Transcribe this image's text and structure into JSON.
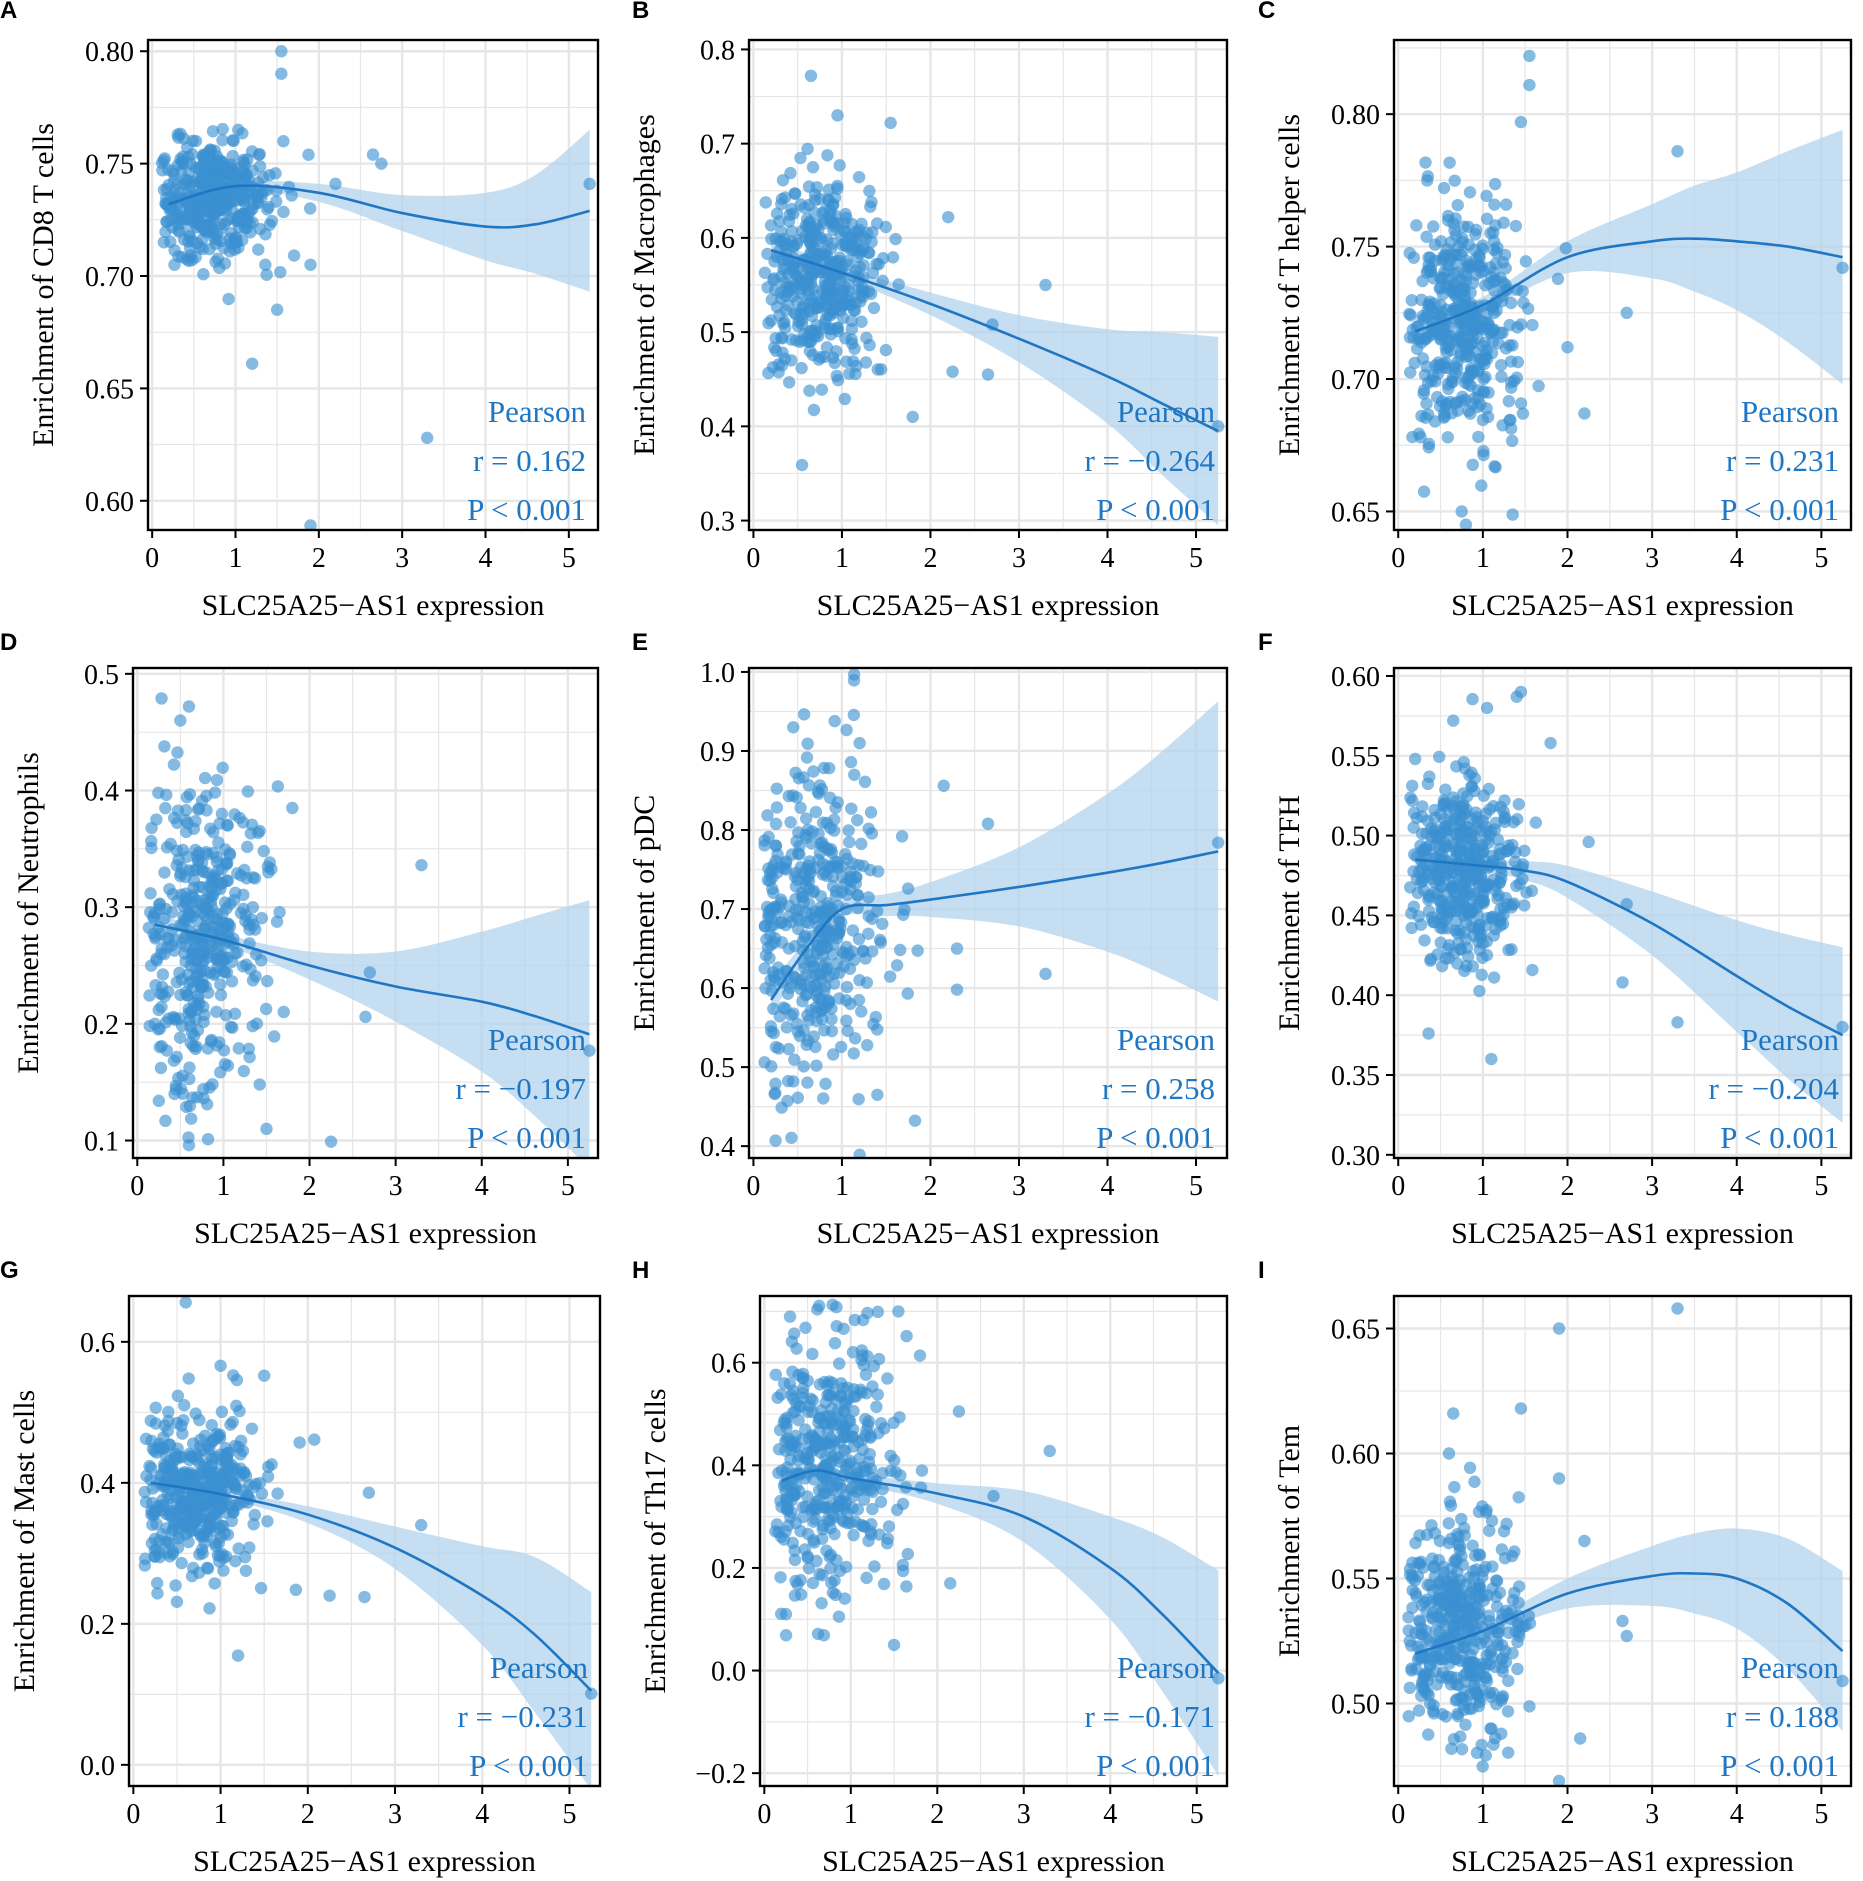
{
  "figure": {
    "x_tick_labels": [
      "0",
      "1",
      "2",
      "3",
      "4",
      "5"
    ],
    "stat_method": "Pearson",
    "point_color": "#3a8fd0",
    "line_color": "#1f77c4",
    "band_color": "#b3d3ee",
    "text_color": "#1f77c4"
  },
  "chart_data": [
    {
      "type": "scatter",
      "panel": "A",
      "xlabel": "SLC25A25−AS1 expression",
      "ylabel": "Enrichment of CD8 T cells",
      "xlim": [
        -0.05,
        5.35
      ],
      "ylim": [
        0.587,
        0.805
      ],
      "yticks": [
        0.6,
        0.65,
        0.7,
        0.75,
        0.8
      ],
      "ytick_labels": [
        "0.60",
        "0.65",
        "0.70",
        "0.75",
        "0.80"
      ],
      "cloud": {
        "center": [
          0.75,
          0.735
        ],
        "spread": [
          0.35,
          0.013
        ]
      },
      "outliers": [
        [
          1.55,
          0.8
        ],
        [
          1.55,
          0.79
        ],
        [
          2.2,
          0.741
        ],
        [
          2.65,
          0.754
        ],
        [
          2.75,
          0.75
        ],
        [
          1.2,
          0.661
        ],
        [
          1.5,
          0.685
        ],
        [
          1.9,
          0.705
        ],
        [
          3.3,
          0.628
        ],
        [
          1.9,
          0.589
        ],
        [
          5.25,
          0.741
        ]
      ],
      "fit": {
        "x": [
          0.2,
          1.0,
          2.0,
          3.0,
          4.0,
          4.6,
          5.25
        ],
        "y": [
          0.732,
          0.74,
          0.737,
          0.728,
          0.722,
          0.723,
          0.729
        ]
      },
      "band_halfwidth": [
        0.004,
        0.002,
        0.004,
        0.008,
        0.015,
        0.022,
        0.036
      ],
      "r_text": "r = 0.162",
      "p_text": "P < 0.001"
    },
    {
      "type": "scatter",
      "panel": "B",
      "xlabel": "SLC25A25−AS1 expression",
      "ylabel": "Enrichment of Macrophages",
      "xlim": [
        -0.05,
        5.35
      ],
      "ylim": [
        0.29,
        0.81
      ],
      "yticks": [
        0.3,
        0.4,
        0.5,
        0.6,
        0.7,
        0.8
      ],
      "ytick_labels": [
        "0.3",
        "0.4",
        "0.5",
        "0.6",
        "0.7",
        "0.8"
      ],
      "cloud": {
        "center": [
          0.75,
          0.56
        ],
        "spread": [
          0.35,
          0.05
        ]
      },
      "outliers": [
        [
          0.65,
          0.772
        ],
        [
          0.95,
          0.73
        ],
        [
          1.55,
          0.722
        ],
        [
          2.2,
          0.622
        ],
        [
          3.3,
          0.55
        ],
        [
          2.7,
          0.508
        ],
        [
          1.8,
          0.41
        ],
        [
          2.65,
          0.455
        ],
        [
          5.25,
          0.4
        ],
        [
          2.25,
          0.458
        ]
      ],
      "fit": {
        "x": [
          0.2,
          1.0,
          2.0,
          3.0,
          4.0,
          4.6,
          5.25
        ],
        "y": [
          0.587,
          0.563,
          0.53,
          0.493,
          0.453,
          0.425,
          0.395
        ]
      },
      "band_halfwidth": [
        0.012,
        0.006,
        0.012,
        0.025,
        0.05,
        0.075,
        0.1
      ],
      "r_text": "r = −0.264",
      "p_text": "P < 0.001"
    },
    {
      "type": "scatter",
      "panel": "C",
      "xlabel": "SLC25A25−AS1 expression",
      "ylabel": "Enrichment of T helper cells",
      "xlim": [
        -0.05,
        5.35
      ],
      "ylim": [
        0.643,
        0.828
      ],
      "yticks": [
        0.65,
        0.7,
        0.75,
        0.8
      ],
      "ytick_labels": [
        "0.65",
        "0.70",
        "0.75",
        "0.80"
      ],
      "cloud": {
        "center": [
          0.75,
          0.722
        ],
        "spread": [
          0.35,
          0.022
        ]
      },
      "outliers": [
        [
          1.55,
          0.822
        ],
        [
          1.55,
          0.811
        ],
        [
          1.45,
          0.797
        ],
        [
          3.3,
          0.786
        ],
        [
          5.25,
          0.742
        ],
        [
          2.7,
          0.725
        ],
        [
          2.2,
          0.687
        ],
        [
          0.8,
          0.645
        ],
        [
          0.75,
          0.65
        ],
        [
          2.0,
          0.712
        ]
      ],
      "fit": {
        "x": [
          0.2,
          1.0,
          2.0,
          3.0,
          3.5,
          4.0,
          4.6,
          5.25
        ],
        "y": [
          0.718,
          0.728,
          0.746,
          0.752,
          0.753,
          0.752,
          0.75,
          0.746
        ]
      },
      "band_halfwidth": [
        0.006,
        0.003,
        0.006,
        0.014,
        0.02,
        0.026,
        0.036,
        0.048
      ],
      "r_text": "r = 0.231",
      "p_text": "P < 0.001"
    },
    {
      "type": "scatter",
      "panel": "D",
      "xlabel": "SLC25A25−AS1 expression",
      "ylabel": "Enrichment of Neutrophils",
      "xlim": [
        -0.05,
        5.35
      ],
      "ylim": [
        0.085,
        0.505
      ],
      "yticks": [
        0.1,
        0.2,
        0.3,
        0.4,
        0.5
      ],
      "ytick_labels": [
        "0.1",
        "0.2",
        "0.3",
        "0.4",
        "0.5"
      ],
      "cloud": {
        "center": [
          0.75,
          0.275
        ],
        "spread": [
          0.35,
          0.065
        ]
      },
      "outliers": [
        [
          0.6,
          0.472
        ],
        [
          0.5,
          0.46
        ],
        [
          0.25,
          0.134
        ],
        [
          0.6,
          0.096
        ],
        [
          1.5,
          0.11
        ],
        [
          3.3,
          0.336
        ],
        [
          2.7,
          0.244
        ],
        [
          2.65,
          0.206
        ],
        [
          2.25,
          0.099
        ],
        [
          5.25,
          0.177
        ],
        [
          1.8,
          0.385
        ]
      ],
      "fit": {
        "x": [
          0.2,
          1.0,
          2.0,
          3.0,
          4.0,
          4.6,
          5.25
        ],
        "y": [
          0.285,
          0.272,
          0.25,
          0.232,
          0.219,
          0.207,
          0.191
        ]
      },
      "band_halfwidth": [
        0.01,
        0.005,
        0.012,
        0.03,
        0.06,
        0.085,
        0.115
      ],
      "r_text": "r = −0.197",
      "p_text": "P < 0.001"
    },
    {
      "type": "scatter",
      "panel": "E",
      "xlabel": "SLC25A25−AS1 expression",
      "ylabel": "Enrichment of pDC",
      "xlim": [
        -0.05,
        5.35
      ],
      "ylim": [
        0.385,
        1.005
      ],
      "yticks": [
        0.4,
        0.5,
        0.6,
        0.7,
        0.8,
        0.9,
        1.0
      ],
      "ytick_labels": [
        "0.4",
        "0.5",
        "0.6",
        "0.7",
        "0.8",
        "0.9",
        "1.0"
      ],
      "cloud": {
        "center": [
          0.75,
          0.67
        ],
        "spread": [
          0.38,
          0.11
        ]
      },
      "outliers": [
        [
          0.45,
          0.93
        ],
        [
          1.2,
          0.91
        ],
        [
          2.15,
          0.856
        ],
        [
          2.65,
          0.808
        ],
        [
          2.3,
          0.65
        ],
        [
          2.3,
          0.598
        ],
        [
          3.3,
          0.618
        ],
        [
          1.4,
          0.465
        ],
        [
          1.2,
          0.389
        ],
        [
          0.25,
          0.407
        ],
        [
          5.25,
          0.784
        ]
      ],
      "fit": {
        "x": [
          0.2,
          0.6,
          1.0,
          1.5,
          2.0,
          3.0,
          4.0,
          4.6,
          5.25
        ],
        "y": [
          0.585,
          0.65,
          0.7,
          0.705,
          0.712,
          0.728,
          0.746,
          0.758,
          0.773
        ]
      },
      "band_halfwidth": [
        0.02,
        0.012,
        0.01,
        0.014,
        0.022,
        0.05,
        0.1,
        0.14,
        0.19
      ],
      "r_text": "r = 0.258",
      "p_text": "P < 0.001"
    },
    {
      "type": "scatter",
      "panel": "F",
      "xlabel": "SLC25A25−AS1 expression",
      "ylabel": "Enrichment of TFH",
      "xlim": [
        -0.05,
        5.35
      ],
      "ylim": [
        0.298,
        0.605
      ],
      "yticks": [
        0.3,
        0.35,
        0.4,
        0.45,
        0.5,
        0.55,
        0.6
      ],
      "ytick_labels": [
        "0.30",
        "0.35",
        "0.40",
        "0.45",
        "0.50",
        "0.55",
        "0.60"
      ],
      "cloud": {
        "center": [
          0.75,
          0.478
        ],
        "spread": [
          0.35,
          0.03
        ]
      },
      "outliers": [
        [
          1.45,
          0.59
        ],
        [
          1.4,
          0.587
        ],
        [
          1.05,
          0.58
        ],
        [
          0.65,
          0.572
        ],
        [
          1.8,
          0.558
        ],
        [
          0.2,
          0.548
        ],
        [
          2.25,
          0.496
        ],
        [
          2.7,
          0.457
        ],
        [
          2.65,
          0.408
        ],
        [
          3.3,
          0.383
        ],
        [
          1.1,
          0.36
        ],
        [
          5.25,
          0.38
        ]
      ],
      "fit": {
        "x": [
          0.2,
          1.0,
          1.5,
          2.0,
          3.0,
          4.0,
          4.6,
          5.25
        ],
        "y": [
          0.485,
          0.481,
          0.478,
          0.471,
          0.445,
          0.412,
          0.393,
          0.375
        ]
      },
      "band_halfwidth": [
        0.008,
        0.004,
        0.006,
        0.01,
        0.02,
        0.035,
        0.045,
        0.055
      ],
      "r_text": "r = −0.204",
      "p_text": "P < 0.001"
    },
    {
      "type": "scatter",
      "panel": "G",
      "xlabel": "SLC25A25−AS1 expression",
      "ylabel": "Enrichment of Mast cells",
      "xlim": [
        -0.05,
        5.35
      ],
      "ylim": [
        -0.03,
        0.665
      ],
      "yticks": [
        0.0,
        0.2,
        0.4,
        0.6
      ],
      "ytick_labels": [
        "0.0",
        "0.2",
        "0.4",
        "0.6"
      ],
      "cloud": {
        "center": [
          0.75,
          0.385
        ],
        "spread": [
          0.35,
          0.06
        ]
      },
      "outliers": [
        [
          0.6,
          0.656
        ],
        [
          1.0,
          0.566
        ],
        [
          1.5,
          0.552
        ],
        [
          2.7,
          0.386
        ],
        [
          3.3,
          0.34
        ],
        [
          2.65,
          0.238
        ],
        [
          2.25,
          0.24
        ],
        [
          1.2,
          0.155
        ],
        [
          5.25,
          0.101
        ]
      ],
      "fit": {
        "x": [
          0.2,
          1.0,
          2.0,
          3.0,
          4.0,
          4.6,
          5.25
        ],
        "y": [
          0.4,
          0.384,
          0.355,
          0.308,
          0.24,
          0.185,
          0.105
        ]
      },
      "band_halfwidth": [
        0.012,
        0.006,
        0.012,
        0.03,
        0.07,
        0.11,
        0.14
      ],
      "r_text": "r = −0.231",
      "p_text": "P < 0.001"
    },
    {
      "type": "scatter",
      "panel": "H",
      "xlabel": "SLC25A25−AS1 expression",
      "ylabel": "Enrichment of Th17 cells",
      "xlim": [
        -0.05,
        5.35
      ],
      "ylim": [
        -0.225,
        0.73
      ],
      "yticks": [
        -0.2,
        0.0,
        0.2,
        0.4,
        0.6
      ],
      "ytick_labels": [
        "−0.2",
        "0.0",
        "0.2",
        "0.4",
        "0.6"
      ],
      "cloud": {
        "center": [
          0.75,
          0.4
        ],
        "spread": [
          0.38,
          0.12
        ]
      },
      "outliers": [
        [
          1.55,
          0.7
        ],
        [
          1.8,
          0.614
        ],
        [
          2.25,
          0.505
        ],
        [
          3.3,
          0.428
        ],
        [
          2.65,
          0.34
        ],
        [
          2.15,
          0.17
        ],
        [
          1.5,
          0.05
        ],
        [
          0.25,
          0.11
        ],
        [
          5.25,
          -0.015
        ]
      ],
      "fit": {
        "x": [
          0.2,
          0.6,
          1.0,
          2.0,
          3.0,
          4.0,
          4.6,
          5.25
        ],
        "y": [
          0.37,
          0.39,
          0.375,
          0.345,
          0.3,
          0.2,
          0.11,
          -0.005
        ]
      },
      "band_halfwidth": [
        0.02,
        0.012,
        0.01,
        0.02,
        0.05,
        0.1,
        0.15,
        0.2
      ],
      "r_text": "r = −0.171",
      "p_text": "P < 0.001"
    },
    {
      "type": "scatter",
      "panel": "I",
      "xlabel": "SLC25A25−AS1 expression",
      "ylabel": "Enrichment of Tem",
      "xlim": [
        -0.05,
        5.35
      ],
      "ylim": [
        0.467,
        0.663
      ],
      "yticks": [
        0.5,
        0.55,
        0.6,
        0.65
      ],
      "ytick_labels": [
        "0.50",
        "0.55",
        "0.60",
        "0.65"
      ],
      "cloud": {
        "center": [
          0.75,
          0.53
        ],
        "spread": [
          0.35,
          0.022
        ]
      },
      "outliers": [
        [
          3.3,
          0.658
        ],
        [
          1.9,
          0.65
        ],
        [
          1.45,
          0.618
        ],
        [
          0.65,
          0.616
        ],
        [
          0.6,
          0.6
        ],
        [
          1.9,
          0.59
        ],
        [
          2.2,
          0.565
        ],
        [
          2.65,
          0.533
        ],
        [
          2.7,
          0.527
        ],
        [
          2.15,
          0.486
        ],
        [
          1.9,
          0.469
        ],
        [
          5.25,
          0.509
        ]
      ],
      "fit": {
        "x": [
          0.2,
          1.0,
          2.0,
          3.0,
          3.5,
          4.0,
          4.6,
          5.25
        ],
        "y": [
          0.52,
          0.529,
          0.544,
          0.551,
          0.552,
          0.55,
          0.54,
          0.521
        ]
      },
      "band_halfwidth": [
        0.005,
        0.003,
        0.006,
        0.012,
        0.016,
        0.02,
        0.026,
        0.032
      ],
      "r_text": "r = 0.188",
      "p_text": "P < 0.001"
    }
  ]
}
